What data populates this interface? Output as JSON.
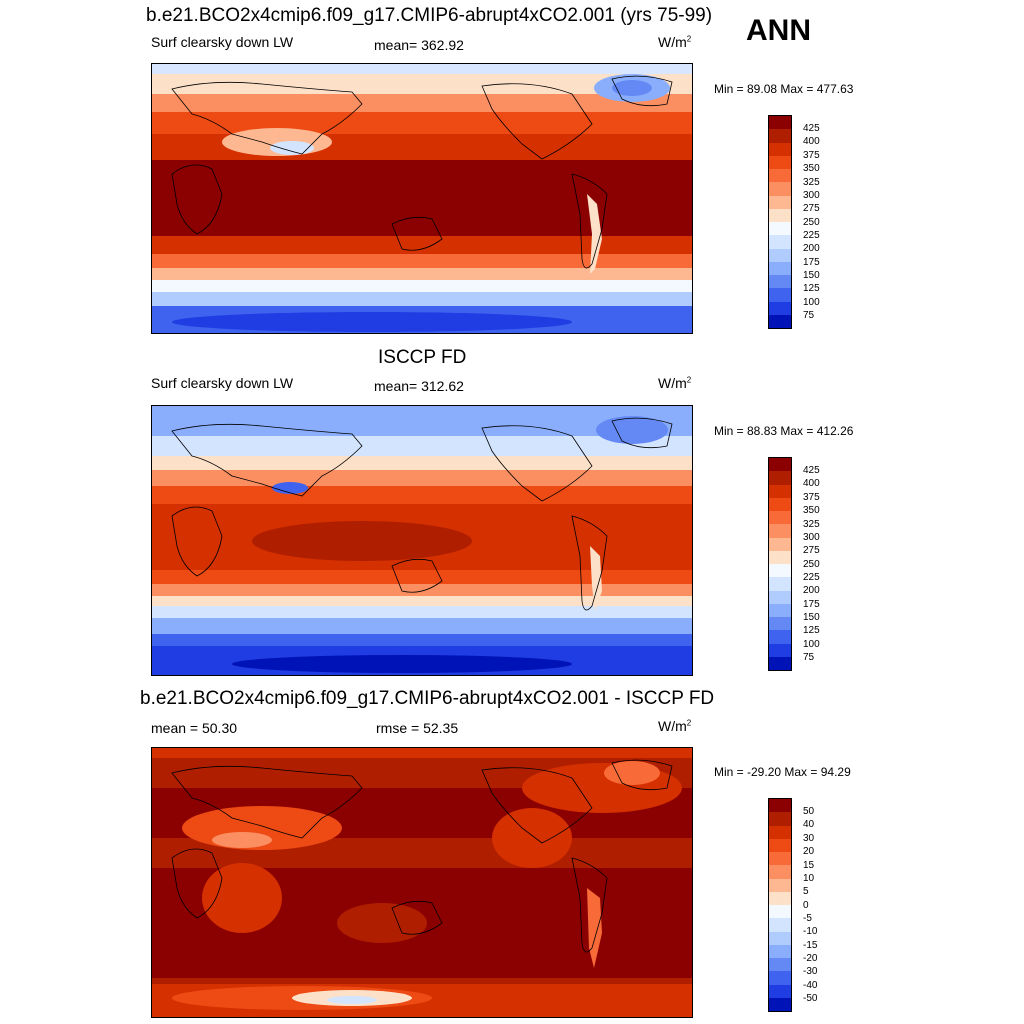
{
  "header": {
    "season": "ANN"
  },
  "panels": [
    {
      "title": "b.e21.BCO2x4cmip6.f09_g17.CMIP6-abrupt4xCO2.001 (yrs 75-99)",
      "left_label": "Surf clearsky down LW",
      "center_label": "mean= 362.92",
      "units": "W/m",
      "units_sup": "2",
      "minmax": "Min =  89.08 Max = 477.63",
      "colorbar": {
        "labels": [
          "425",
          "400",
          "375",
          "350",
          "325",
          "300",
          "275",
          "250",
          "225",
          "200",
          "175",
          "150",
          "125",
          "100",
          "75"
        ],
        "colors": [
          "#8b0000",
          "#b01e00",
          "#d53000",
          "#ee4a14",
          "#f86a38",
          "#fb8f62",
          "#fdb892",
          "#fde0c8",
          "#f4f8ff",
          "#d3e4ff",
          "#b0ccff",
          "#8aaefc",
          "#6489f5",
          "#3f63ef",
          "#1f3de2",
          "#0013b6"
        ]
      },
      "map_style": "model"
    },
    {
      "title": "ISCCP FD",
      "left_label": "Surf clearsky down LW",
      "center_label": "mean= 312.62",
      "units": "W/m",
      "units_sup": "2",
      "minmax": "Min =  88.83 Max = 412.26",
      "colorbar": {
        "labels": [
          "425",
          "400",
          "375",
          "350",
          "325",
          "300",
          "275",
          "250",
          "225",
          "200",
          "175",
          "150",
          "125",
          "100",
          "75"
        ],
        "colors": [
          "#8b0000",
          "#b01e00",
          "#d53000",
          "#ee4a14",
          "#f86a38",
          "#fb8f62",
          "#fdb892",
          "#fde0c8",
          "#f4f8ff",
          "#d3e4ff",
          "#b0ccff",
          "#8aaefc",
          "#6489f5",
          "#3f63ef",
          "#1f3de2",
          "#0013b6"
        ]
      },
      "map_style": "obs"
    },
    {
      "title": "b.e21.BCO2x4cmip6.f09_g17.CMIP6-abrupt4xCO2.001 - ISCCP FD",
      "left_label": "mean =  50.30",
      "center_label": "rmse =  52.35",
      "units": "W/m",
      "units_sup": "2",
      "minmax": "Min = -29.20 Max =  94.29",
      "colorbar": {
        "labels": [
          "50",
          "40",
          "30",
          "20",
          "15",
          "10",
          "5",
          "0",
          "-5",
          "-10",
          "-15",
          "-20",
          "-30",
          "-40",
          "-50"
        ],
        "colors": [
          "#8b0000",
          "#b01e00",
          "#d53000",
          "#ee4a14",
          "#f86a38",
          "#fb8f62",
          "#fdb892",
          "#fde0c8",
          "#f4f8ff",
          "#d3e4ff",
          "#b0ccff",
          "#8aaefc",
          "#6489f5",
          "#3f63ef",
          "#1f3de2",
          "#0013b6"
        ]
      },
      "map_style": "diff"
    }
  ]
}
